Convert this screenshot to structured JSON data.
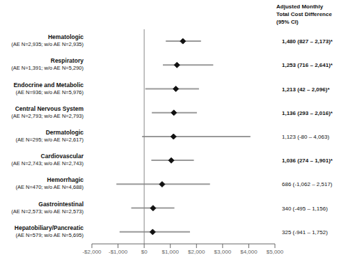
{
  "chart_data": {
    "type": "forest",
    "categories": [
      "Hematologic",
      "Respiratory",
      "Endocrine and Metabolic",
      "Central Nervous System",
      "Dermatologic",
      "Cardiovascular",
      "Hemorrhagic",
      "Gastrointestinal",
      "Hepatobiliary/Pancreatic"
    ],
    "sublabels": [
      "(AE N=2,935; w/o AE N=2,935)",
      "(AE N=1,391; w/o AE N=5,290)",
      "(AE N=936; w/o AE N=5,976)",
      "(AE N=2,793; w/o AE N=2,793)",
      "(AE N=295; w/o AE N=2,617)",
      "(AE N=2,743; w/o AE N=2,743)",
      "(AE N=470; w/o AE N=4,688)",
      "(AE N=2,573; w/o AE N=2,573)",
      "(AE N=579; w/o AE N=5,695)"
    ],
    "values": [
      1480,
      1253,
      1213,
      1136,
      1123,
      1036,
      686,
      340,
      325
    ],
    "ci_low": [
      827,
      716,
      42,
      293,
      -80,
      274,
      -1062,
      -495,
      -941
    ],
    "ci_high": [
      2173,
      2641,
      2096,
      2016,
      4063,
      1901,
      2517,
      1156,
      1752
    ],
    "significant": [
      true,
      true,
      true,
      true,
      false,
      true,
      false,
      false,
      false
    ],
    "value_labels": [
      "1,480 (827 – 2,173)*",
      "1,253 (716 – 2,641)*",
      "1,213 (42 – 2,096)*",
      "1,136 (293 – 2,016)*",
      "1,123 (-80 – 4,063)",
      "1,036 (274 – 1,901)*",
      "686 (-1,062 – 2,517)",
      "340 (-495 – 1,156)",
      "325 (-941 – 1,752)"
    ],
    "value_header": [
      "Adjusted Monthly",
      "Total Cost Difference",
      "(95% CI)"
    ],
    "xlim": [
      -2000,
      5000
    ],
    "xticks": [
      {
        "value": -2000,
        "label": "-$2,000"
      },
      {
        "value": -1000,
        "label": "-$1,000"
      },
      {
        "value": 0,
        "label": "$0"
      },
      {
        "value": 1000,
        "label": "$1,000"
      },
      {
        "value": 2000,
        "label": "$2,000"
      },
      {
        "value": 3000,
        "label": "$3,000"
      },
      {
        "value": 4000,
        "label": "$4,000"
      },
      {
        "value": 5000,
        "label": "$5,000"
      }
    ],
    "reference_line": 0,
    "color": "#111111",
    "ci_color": "#999999",
    "grid": false
  }
}
